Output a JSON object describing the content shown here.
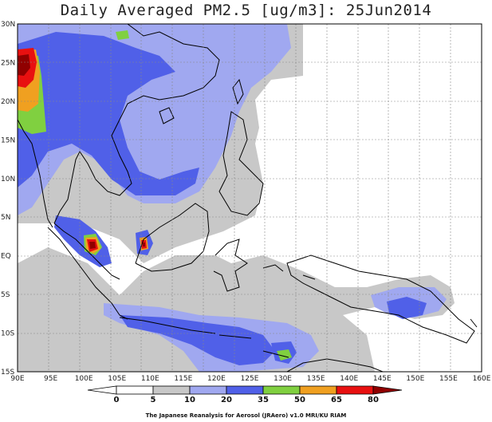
{
  "title": "Daily Averaged PM2.5 [ug/m3]: 25Jun2014",
  "lat_ticks": [
    "30N",
    "25N",
    "20N",
    "15N",
    "10N",
    "5N",
    "EQ",
    "5S",
    "10S",
    "15S"
  ],
  "lon_ticks": [
    "90E",
    "95E",
    "100E",
    "105E",
    "110E",
    "115E",
    "120E",
    "125E",
    "130E",
    "135E",
    "140E",
    "145E",
    "150E",
    "155E",
    "160E"
  ],
  "colorbar": {
    "labels": [
      "0",
      "5",
      "10",
      "20",
      "35",
      "50",
      "65",
      "80"
    ],
    "colors": [
      "#ffffff",
      "#ffffff",
      "#c8c8c8",
      "#a0a8f0",
      "#5060e8",
      "#80d040",
      "#f0a020",
      "#e81010",
      "#900000"
    ]
  },
  "credit": "The Japanese Reanalysis for Aerosol (JRAero) v1.0 MRI/KU RIAM",
  "palette": {
    "gray": "#c8c8c8",
    "light_blue": "#a0a8f0",
    "blue": "#5060e8",
    "green": "#80d040",
    "orange": "#f0a020",
    "red": "#e81010",
    "dark_red": "#900000"
  }
}
